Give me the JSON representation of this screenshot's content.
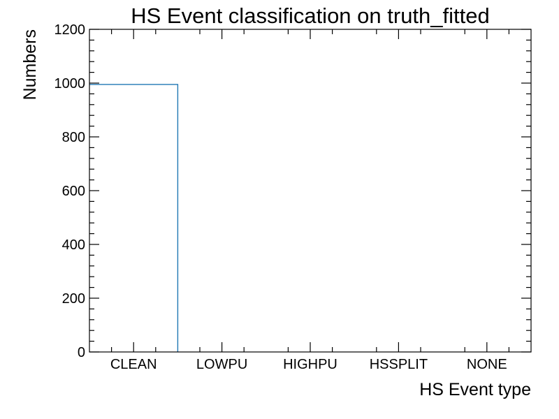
{
  "chart_data": {
    "type": "bar",
    "title": "HS Event classification on truth_fitted",
    "xlabel": "HS Event type",
    "ylabel": "Numbers",
    "categories": [
      "CLEAN",
      "LOWPU",
      "HIGHPU",
      "HSSPLIT",
      "NONE"
    ],
    "values": [
      995,
      0,
      0,
      0,
      0
    ],
    "ylim": [
      0,
      1200
    ],
    "yticks": [
      0,
      200,
      400,
      600,
      800,
      1000,
      1200
    ],
    "style": "step-histogram",
    "grid": false,
    "colors": {
      "series": "#1f77b4",
      "axes": "#000000"
    }
  }
}
